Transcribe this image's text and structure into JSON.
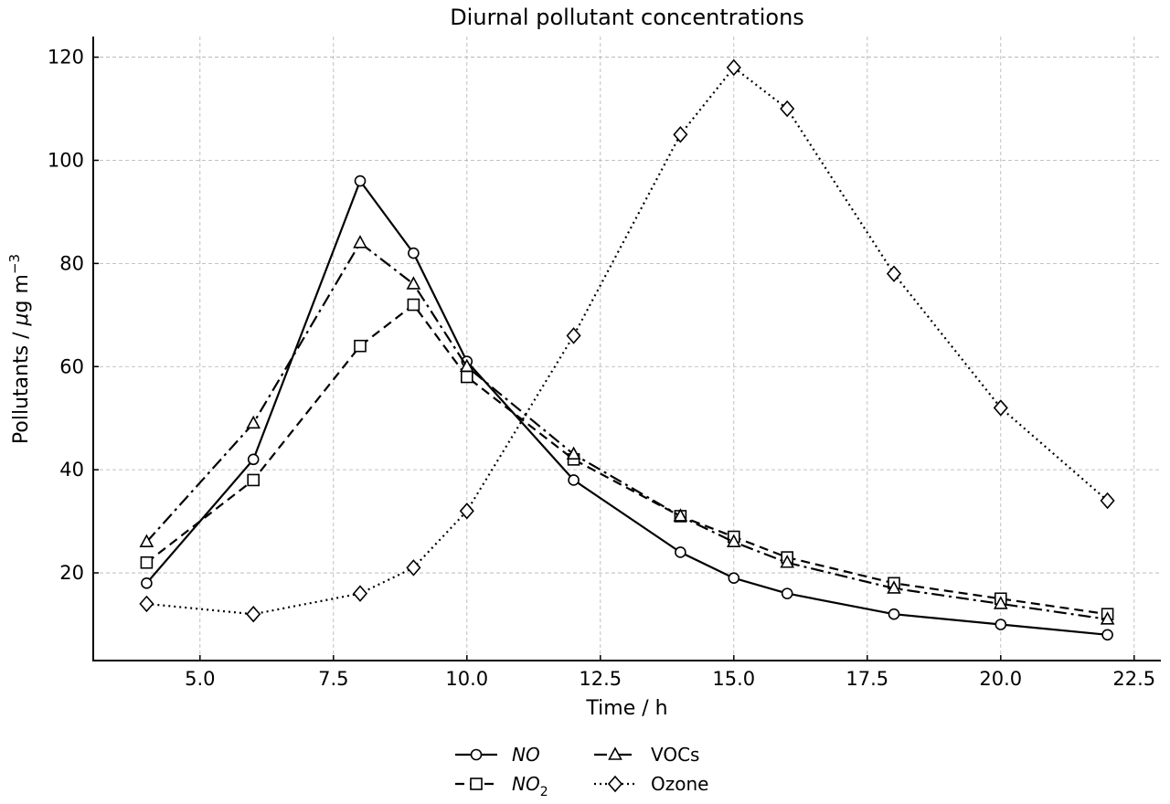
{
  "chart_data": {
    "type": "line",
    "title": "Diurnal pollutant concentrations",
    "xlabel": "Time / h",
    "ylabel_parts": {
      "main": "Pollutants / ",
      "mu": "μ",
      "unit": "g m",
      "sup": "−3"
    },
    "xlim": [
      3.0,
      23.0
    ],
    "ylim": [
      3.0,
      124.0
    ],
    "xticks": [
      5.0,
      7.5,
      10.0,
      12.5,
      15.0,
      17.5,
      20.0,
      22.5
    ],
    "xtick_labels": [
      "5.0",
      "7.5",
      "10.0",
      "12.5",
      "15.0",
      "17.5",
      "20.0",
      "22.5"
    ],
    "yticks": [
      20,
      40,
      60,
      80,
      100,
      120
    ],
    "ytick_labels": [
      "20",
      "40",
      "60",
      "80",
      "100",
      "120"
    ],
    "grid": true,
    "legend_position": "bottom-center",
    "x": [
      4,
      6,
      8,
      9,
      10,
      12,
      14,
      15,
      16,
      18,
      20,
      22
    ],
    "series": [
      {
        "name": "NO",
        "italic": true,
        "sub": "",
        "marker": "circle",
        "dash": "",
        "values": [
          18,
          42,
          96,
          82,
          61,
          38,
          24,
          19,
          16,
          12,
          10,
          8
        ]
      },
      {
        "name": "NO",
        "italic": true,
        "sub": "2",
        "marker": "square",
        "dash": "10 6",
        "values": [
          22,
          38,
          64,
          72,
          58,
          42,
          31,
          27,
          23,
          18,
          15,
          12
        ]
      },
      {
        "name": "VOCs",
        "italic": false,
        "sub": "",
        "marker": "triangle",
        "dash": "14 5 3 5",
        "values": [
          26,
          49,
          84,
          76,
          60,
          43,
          31,
          26,
          22,
          17,
          14,
          11
        ]
      },
      {
        "name": "Ozone",
        "italic": false,
        "sub": "",
        "marker": "diamond",
        "dash": "2 4",
        "values": [
          14,
          12,
          16,
          21,
          32,
          66,
          105,
          118,
          110,
          78,
          52,
          34
        ]
      }
    ]
  }
}
